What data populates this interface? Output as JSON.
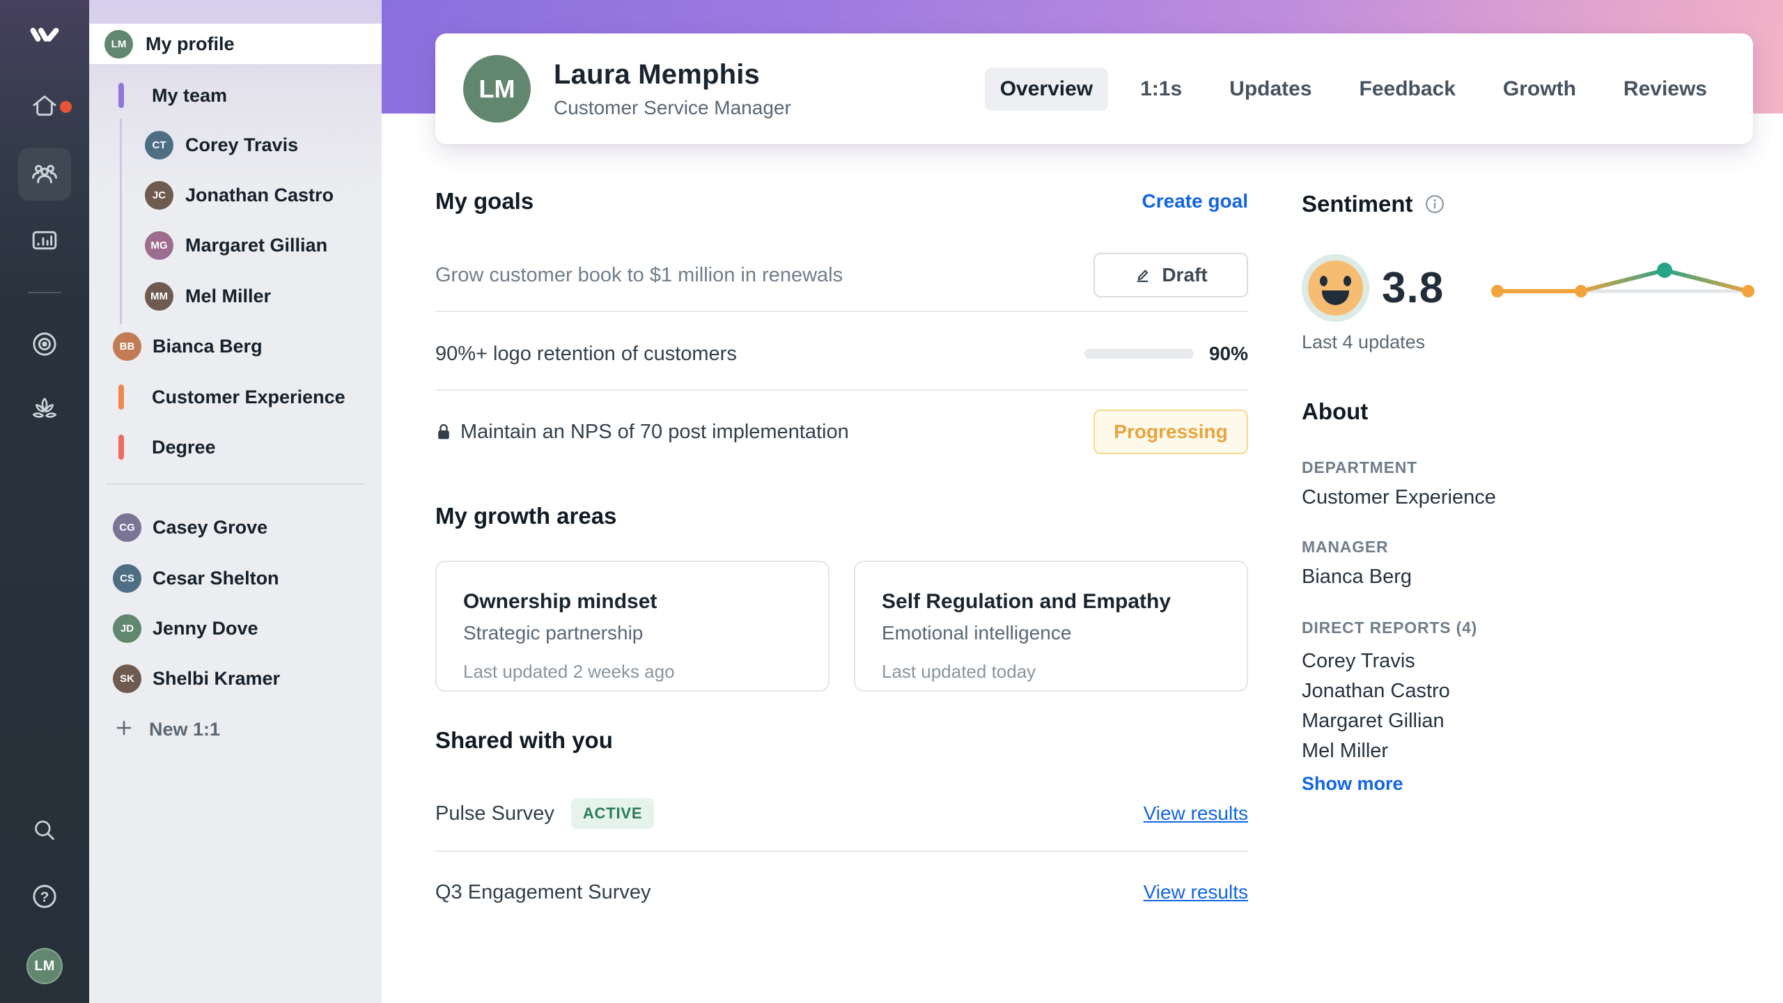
{
  "rail": {
    "icons": [
      "lattice-logo-icon",
      "home-icon",
      "team-icon",
      "insights-icon",
      "goals-target-icon",
      "grow-lotus-icon",
      "search-icon",
      "help-icon"
    ],
    "has_home_notification": true,
    "selected": "team-icon"
  },
  "sidebar": {
    "profile": {
      "label": "My profile"
    },
    "team_label": "My team",
    "team_members": [
      "Corey Travis",
      "Jonathan Castro",
      "Margaret Gillian",
      "Mel Miller"
    ],
    "manager": "Bianca Berg",
    "groups": [
      {
        "label": "Customer Experience",
        "color": "#ef874e"
      },
      {
        "label": "Degree",
        "color": "#ec6a5e"
      }
    ],
    "others": [
      "Casey Grove",
      "Cesar Shelton",
      "Jenny Dove",
      "Shelbi Kramer"
    ],
    "new_one_on_one": "New 1:1"
  },
  "header": {
    "name": "Laura Memphis",
    "role": "Customer Service Manager",
    "tabs": [
      {
        "label": "Overview",
        "active": true
      },
      {
        "label": "1:1s"
      },
      {
        "label": "Updates"
      },
      {
        "label": "Feedback"
      },
      {
        "label": "Growth"
      },
      {
        "label": "Reviews"
      }
    ]
  },
  "goals": {
    "heading": "My goals",
    "action": "Create goal",
    "rows": [
      {
        "title": "Grow customer book to $1 million in renewals",
        "status": "Draft",
        "status_type": "draft"
      },
      {
        "title": "90%+ logo retention of customers",
        "progress": 90,
        "progress_label": "90%"
      },
      {
        "title": "Maintain an NPS of 70 post implementation",
        "locked": true,
        "status": "Progressing",
        "status_type": "progressing"
      }
    ]
  },
  "growth": {
    "heading": "My growth areas",
    "cards": [
      {
        "title": "Ownership mindset",
        "subtitle": "Strategic partnership",
        "meta": "Last updated 2 weeks ago"
      },
      {
        "title": "Self Regulation and Empathy",
        "subtitle": "Emotional intelligence",
        "meta": "Last updated today"
      }
    ]
  },
  "shared": {
    "heading": "Shared with you",
    "rows": [
      {
        "title": "Pulse Survey",
        "badge": "ACTIVE",
        "link": "View results"
      },
      {
        "title": "Q3 Engagement Survey",
        "link": "View results"
      }
    ]
  },
  "sentiment": {
    "heading": "Sentiment",
    "score": "3.8",
    "caption": "Last 4 updates"
  },
  "about": {
    "heading": "About",
    "department_label": "DEPARTMENT",
    "department": "Customer Experience",
    "manager_label": "MANAGER",
    "manager": "Bianca Berg",
    "reports_label": "DIRECT REPORTS (4)",
    "reports": [
      "Corey Travis",
      "Jonathan Castro",
      "Margaret Gillian",
      "Mel Miller"
    ],
    "show_more": "Show more"
  },
  "chart_data": {
    "type": "line",
    "title": "Sentiment trend, last 4 updates",
    "x": [
      1,
      2,
      3,
      4
    ],
    "values": [
      3.5,
      3.5,
      4.5,
      3.5
    ],
    "point_colors": [
      "#f2a33c",
      "#f2a33c",
      "#27a386",
      "#f2a33c"
    ],
    "baseline_color": "#e2e5e8",
    "ylim": [
      1,
      5
    ],
    "grid": false,
    "legend": false
  },
  "colors": {
    "accent_purple": "#8b6fdf",
    "accent_blue": "#1265e2",
    "progress_teal": "#29a385",
    "sentiment_orange": "#f2a33c",
    "active_badge_bg": "#e6f3ed",
    "active_badge_text": "#2b7a5b",
    "progressing_text": "#eaa33c",
    "notification_red": "#e85438"
  }
}
